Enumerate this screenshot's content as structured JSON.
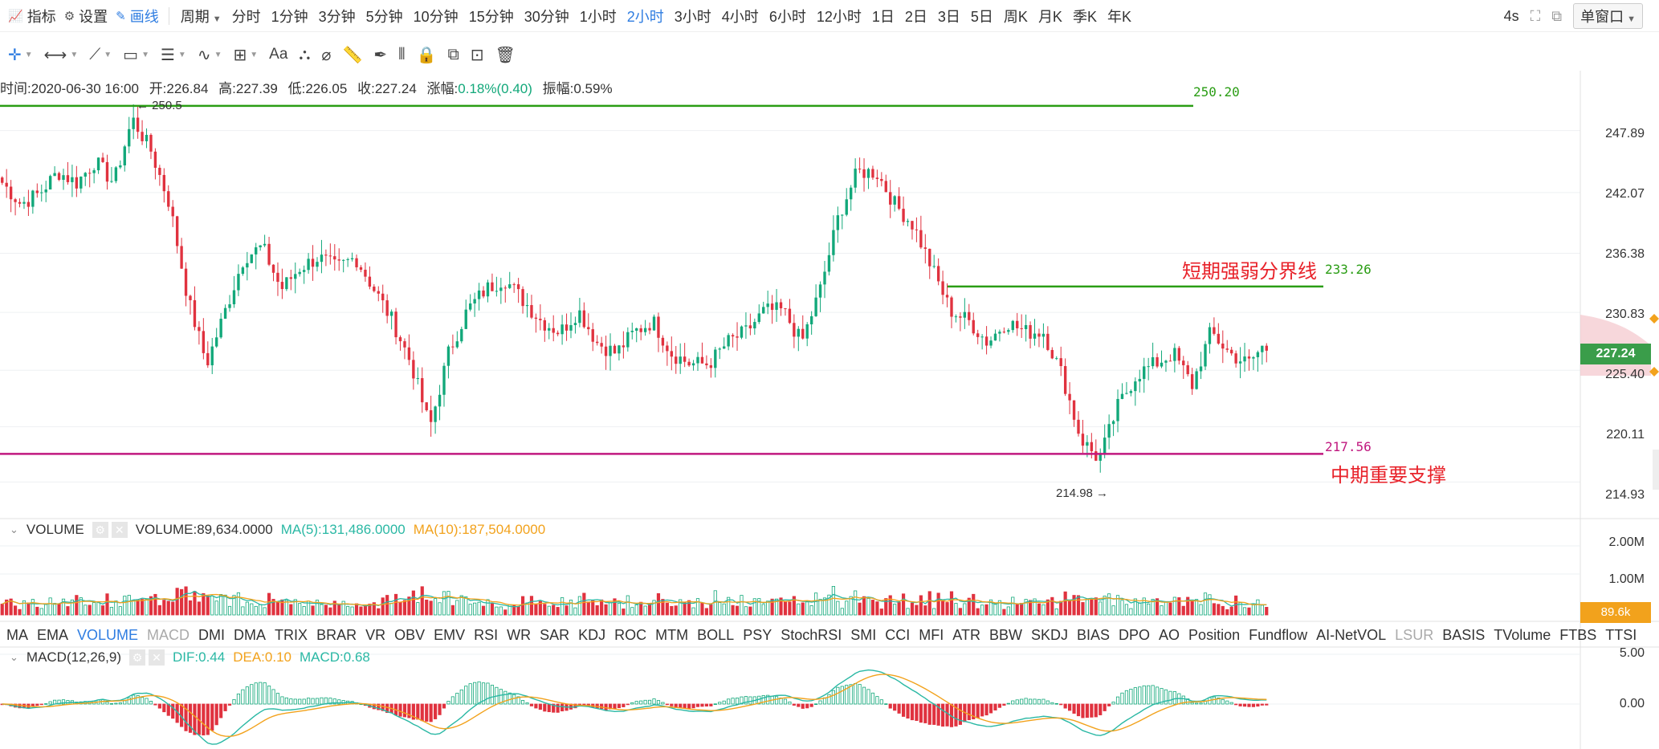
{
  "toolbar": {
    "indicators": "指标",
    "settings": "设置",
    "draw": "画线",
    "period": "周期",
    "periods": [
      "分时",
      "1分钟",
      "3分钟",
      "5分钟",
      "10分钟",
      "15分钟",
      "30分钟",
      "1小时",
      "2小时",
      "3小时",
      "4小时",
      "6小时",
      "12小时",
      "1日",
      "2日",
      "3日",
      "5日",
      "周K",
      "月K",
      "季K",
      "年K"
    ],
    "active_period": "2小时",
    "refresh": "4s",
    "window_mode": "单窗口"
  },
  "ohlc": {
    "time": "时间:2020-06-30 16:00",
    "open": "开:226.84",
    "high": "高:227.39",
    "low": "低:226.05",
    "close": "收:227.24",
    "change_label": "涨幅:",
    "change_value": "0.18%(0.40)",
    "amplitude": "振幅:0.59%"
  },
  "annotations": {
    "line_250": "250.20",
    "line_233": "233.26",
    "line_217": "217.56",
    "label_233": "短期强弱分界线",
    "label_217": "中期重要支撑",
    "high_marker": "← 250.5",
    "low_marker": "214.98 →"
  },
  "price_axis": [
    "247.89",
    "242.07",
    "236.38",
    "230.83",
    "225.40",
    "220.11",
    "214.93"
  ],
  "current_price": "227.24",
  "volume": {
    "title": "VOLUME",
    "value": "VOLUME:89,634.0000",
    "ma5": "MA(5):131,486.0000",
    "ma10": "MA(10):187,504.0000",
    "axis": [
      "2.00M",
      "1.00M"
    ],
    "current": "89.6k"
  },
  "indicator_tabs": [
    "MA",
    "EMA",
    "VOLUME",
    "MACD",
    "DMI",
    "DMA",
    "TRIX",
    "BRAR",
    "VR",
    "OBV",
    "EMV",
    "RSI",
    "WR",
    "SAR",
    "KDJ",
    "ROC",
    "MTM",
    "BOLL",
    "PSY",
    "StochRSI",
    "SMI",
    "CCI",
    "MFI",
    "ATR",
    "BBW",
    "SKDJ",
    "BIAS",
    "DPO",
    "AO",
    "Position",
    "Fundflow",
    "AI-NetVOL",
    "LSUR",
    "BASIS",
    "TVolume",
    "FTBS",
    "TTSI"
  ],
  "macd": {
    "title": "MACD(12,26,9)",
    "dif": "DIF:0.44",
    "dea": "DEA:0.10",
    "macd": "MACD:0.68",
    "axis": [
      "5.00",
      "0.00"
    ]
  },
  "colors": {
    "up": "#12a87a",
    "down": "#e0323f",
    "line_green": "#2a9d14",
    "line_magenta": "#c0187f",
    "annotation_red": "#e8222a",
    "ma5": "#2ab8a4",
    "ma10": "#f2a21c",
    "accent": "#2f7de1"
  },
  "chart_data": {
    "type": "candlestick",
    "interval": "2小时",
    "last_bar": {
      "time": "2020-06-30 16:00",
      "open": 226.84,
      "high": 227.39,
      "low": 226.05,
      "close": 227.24
    },
    "price_range": [
      213,
      252
    ],
    "highest": 250.5,
    "lowest": 214.98,
    "horizontal_lines": [
      250.2,
      233.26,
      217.56
    ],
    "close_path": [
      243,
      241,
      242,
      244,
      243,
      245,
      243,
      249,
      246,
      241,
      232,
      226,
      231,
      236,
      237,
      233,
      235,
      236,
      235,
      236,
      233,
      230,
      226,
      220,
      227,
      231,
      233,
      234,
      232,
      230,
      229,
      231,
      228,
      227,
      229,
      230,
      227,
      226,
      226,
      228,
      229,
      231,
      231,
      228,
      233,
      240,
      244,
      244,
      241,
      239,
      235,
      231,
      230,
      228,
      230,
      229,
      229,
      225,
      219,
      217,
      222,
      225,
      226,
      227,
      224,
      229,
      227,
      226,
      228
    ],
    "volume_range": [
      0,
      2000000
    ],
    "volume_current": 89634,
    "macd_range": [
      -3,
      5
    ],
    "macd": {
      "dif": 0.44,
      "dea": 0.1,
      "macd": 0.68
    }
  }
}
